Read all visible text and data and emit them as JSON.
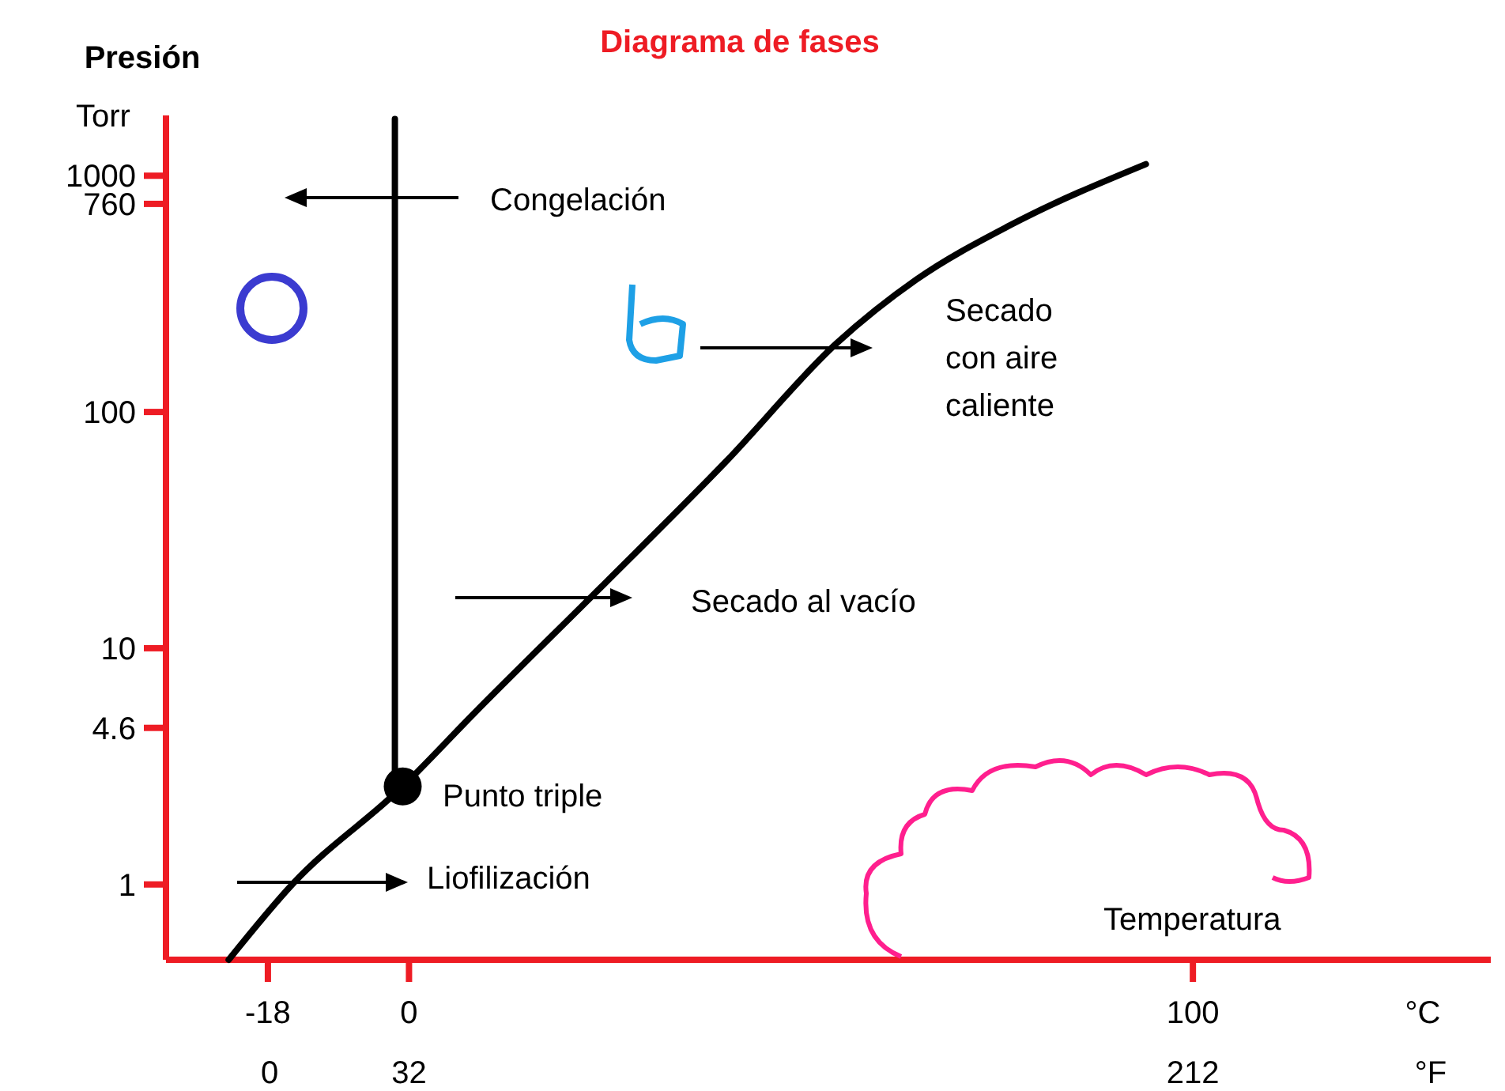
{
  "chart_data": {
    "type": "line",
    "title": "Diagrama de fases",
    "ylabel": "Presión",
    "xlabel": "°C",
    "x2label": "°F",
    "xlim": [
      -31,
      138
    ],
    "xticks": [
      -18,
      0,
      100
    ],
    "x2lim": [
      -23.8,
      280.4
    ],
    "x2ticks": [
      0,
      32,
      212
    ],
    "ylim": [
      0.48,
      1800
    ],
    "yticks": [
      1,
      4.6,
      10,
      100,
      760,
      1000
    ],
    "log": "y",
    "grid": false,
    "series": [
      {
        "color": "#000000",
        "marker": "none",
        "x": [
          -23,
          -14.9,
          -0.8,
          8.3,
          24.4,
          40.5,
          54.6,
          64.7,
          76.8,
          94
        ],
        "values": [
          0.48,
          1.0,
          2.6,
          5.3,
          18,
          62,
          196,
          363,
          620,
          1120
        ]
      },
      {
        "color": "#000000",
        "marker": "none",
        "x": [
          -1.8,
          -1.8
        ],
        "values": [
          2.6,
          1740
        ]
      },
      {
        "type": "scatter",
        "color": "#000000",
        "marker": "circle",
        "x": [
          -0.8
        ],
        "values": [
          2.6
        ]
      }
    ],
    "annotations": [
      "Torr",
      "Congelación",
      "Secado con aire caliente",
      "Secado al vacío",
      "Punto triple",
      "Liofilización",
      "Temperatura"
    ]
  }
}
